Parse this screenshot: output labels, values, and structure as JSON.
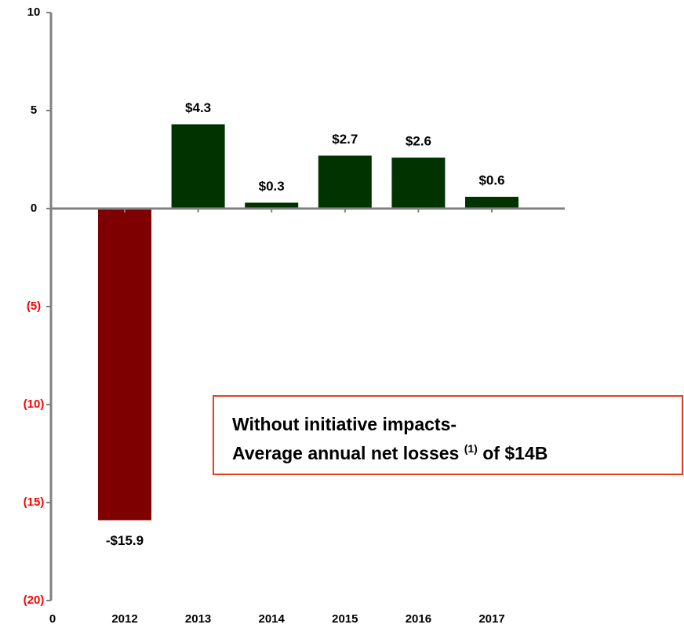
{
  "chart_data": {
    "type": "bar",
    "categories": [
      "2012",
      "2013",
      "2014",
      "2015",
      "2016",
      "2017"
    ],
    "x_origin_label": "0",
    "values": [
      -15.9,
      4.3,
      0.3,
      2.7,
      2.6,
      0.6
    ],
    "value_labels": [
      "-$15.9",
      "$4.3",
      "$0.3",
      "$2.7",
      "$2.6",
      "$0.6"
    ],
    "colors": [
      "#7f0000",
      "#003300",
      "#003300",
      "#003300",
      "#003300",
      "#003300"
    ],
    "ylim": [
      -20,
      10
    ],
    "yticks": [
      {
        "value": -20,
        "label": "(20)"
      },
      {
        "value": -15,
        "label": "(15)"
      },
      {
        "value": -10,
        "label": "(10)"
      },
      {
        "value": -5,
        "label": "(5)"
      },
      0,
      5,
      10
    ],
    "tick_color": "#000000",
    "negative_tick_color": "#ff0000",
    "axis_color": "#808080",
    "annotation": {
      "line1": "Without initiative impacts-",
      "line2_start": "Average annual net losses",
      "line2_sup": "(1)",
      "line2_end": "of $14B",
      "border_color": "#e8401c"
    }
  }
}
